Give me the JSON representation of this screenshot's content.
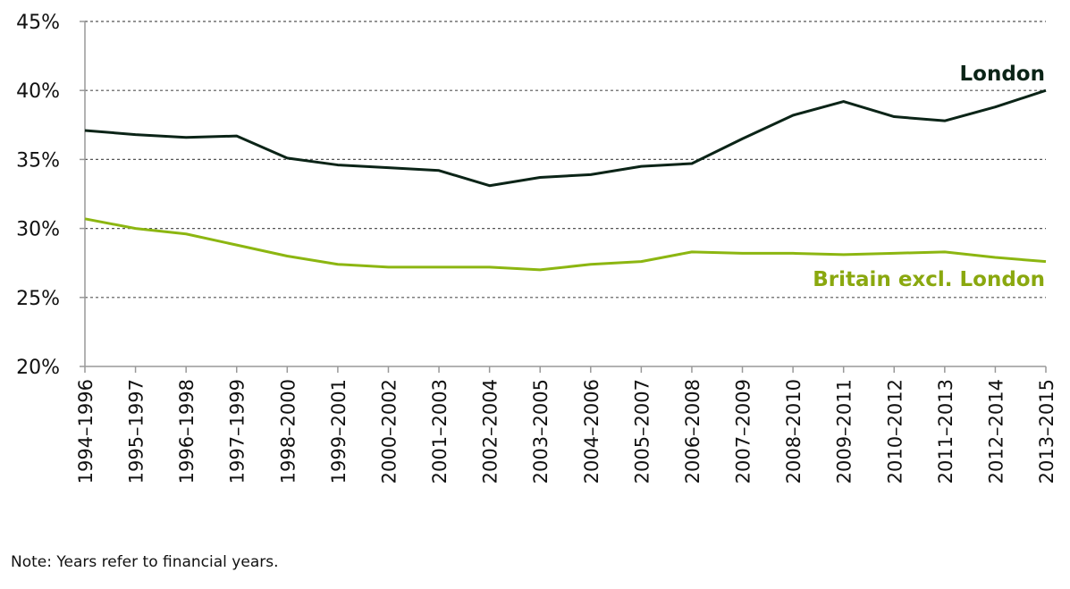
{
  "chart_data": {
    "type": "line",
    "title": "",
    "xlabel": "",
    "ylabel": "",
    "ylim": [
      20,
      45
    ],
    "yticks": [
      20,
      25,
      30,
      35,
      40,
      45
    ],
    "ytick_labels": [
      "20%",
      "25%",
      "30%",
      "35%",
      "40%",
      "45%"
    ],
    "grid": "horizontal dashed",
    "categories": [
      "1994–1996",
      "1995–1997",
      "1996–1998",
      "1997–1999",
      "1998–2000",
      "1999–2001",
      "2000–2002",
      "2001–2003",
      "2002–2004",
      "2003–2005",
      "2004–2006",
      "2005–2007",
      "2006–2008",
      "2007–2009",
      "2008–2010",
      "2009–2011",
      "2010–2012",
      "2011–2013",
      "2012–2014",
      "2013–2015"
    ],
    "series": [
      {
        "name": "London",
        "color": "#0b2417",
        "values": [
          37.1,
          36.8,
          36.6,
          36.7,
          35.1,
          34.6,
          34.4,
          34.2,
          33.1,
          33.7,
          33.9,
          34.5,
          34.7,
          36.5,
          38.2,
          39.2,
          38.1,
          37.8,
          38.8,
          40.0
        ]
      },
      {
        "name": "Britain excl. London",
        "color": "#8cb611",
        "label_color": "#8aa80f",
        "values": [
          30.7,
          30.0,
          29.6,
          28.8,
          28.0,
          27.4,
          27.2,
          27.2,
          27.2,
          27.0,
          27.4,
          27.6,
          28.3,
          28.2,
          28.2,
          28.1,
          28.2,
          28.3,
          27.9,
          27.6
        ]
      }
    ],
    "legend": "inline labels at right end of lines",
    "note": "Note: Years refer to financial years."
  }
}
